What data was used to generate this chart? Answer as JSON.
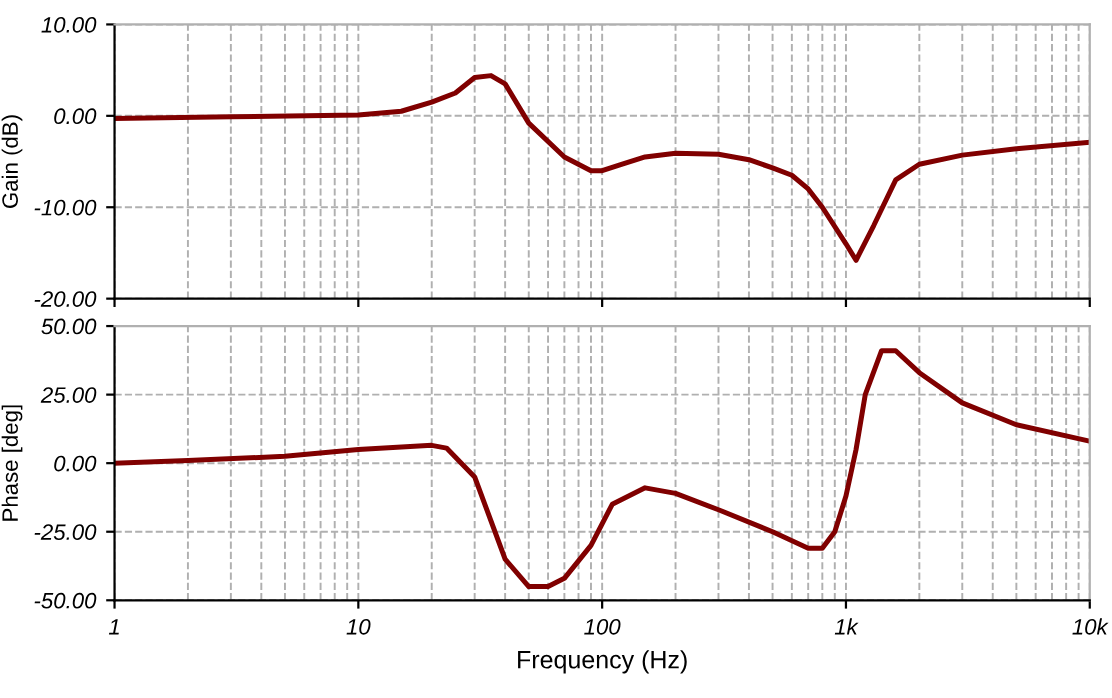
{
  "chart_data": [
    {
      "type": "line",
      "ylabel": "Gain (dB)",
      "log": "x",
      "grid": true,
      "tick_labels": "y",
      "line_style": "solid",
      "x": [
        1,
        3,
        10,
        15,
        20,
        25,
        30,
        35,
        40,
        50,
        70,
        90,
        100,
        120,
        150,
        200,
        300,
        400,
        500,
        600,
        700,
        800,
        1000,
        1100,
        1300,
        1600,
        2000,
        3000,
        5000,
        10000
      ],
      "series": [
        {
          "color": "#800000",
          "values": [
            -0.3,
            -0.1,
            0.1,
            0.5,
            1.5,
            2.5,
            4.2,
            4.4,
            3.5,
            -0.8,
            -4.5,
            -6,
            -6,
            -5.3,
            -4.5,
            -4.1,
            -4.2,
            -4.8,
            -5.7,
            -6.5,
            -8,
            -10,
            -14,
            -15.8,
            -12,
            -7,
            -5.3,
            -4.3,
            -3.6,
            -2.9
          ]
        }
      ],
      "xlim": [
        1,
        10000
      ],
      "ylim": [
        -20,
        10
      ],
      "yticks": [
        {
          "value": -20,
          "label": "-20.00"
        },
        {
          "value": -10,
          "label": "-10.00"
        },
        {
          "value": 0,
          "label": "0.00"
        },
        {
          "value": 10,
          "label": "10.00"
        }
      ]
    },
    {
      "type": "line",
      "ylabel": "Phase [deg]",
      "xlabel": "Frequency (Hz)",
      "log": "x",
      "grid": true,
      "line_style": "solid",
      "x": [
        1,
        2,
        5,
        10,
        20,
        23,
        30,
        40,
        50,
        60,
        70,
        90,
        110,
        150,
        200,
        300,
        500,
        700,
        800,
        900,
        1000,
        1100,
        1200,
        1400,
        1600,
        2000,
        3000,
        5000,
        10000
      ],
      "series": [
        {
          "color": "#800000",
          "values": [
            0,
            1,
            2.5,
            5,
            6.5,
            5.5,
            -5,
            -35,
            -45,
            -45,
            -42,
            -30,
            -15,
            -9,
            -11,
            -17,
            -25,
            -31,
            -31,
            -25,
            -12,
            5,
            25,
            41,
            41,
            33,
            22,
            14,
            8
          ]
        }
      ],
      "xlim": [
        1,
        10000
      ],
      "xticks": [
        1,
        10,
        100,
        {
          "value": 1000,
          "label": "1k"
        },
        {
          "value": 10000,
          "label": "10k"
        }
      ],
      "ylim": [
        -50,
        50
      ],
      "yticks": [
        {
          "value": -50,
          "label": "-50.00"
        },
        {
          "value": -25,
          "label": "-25.00"
        },
        {
          "value": 0,
          "label": "0.00"
        },
        {
          "value": 25,
          "label": "25.00"
        },
        {
          "value": 50,
          "label": "50.00"
        }
      ]
    }
  ]
}
